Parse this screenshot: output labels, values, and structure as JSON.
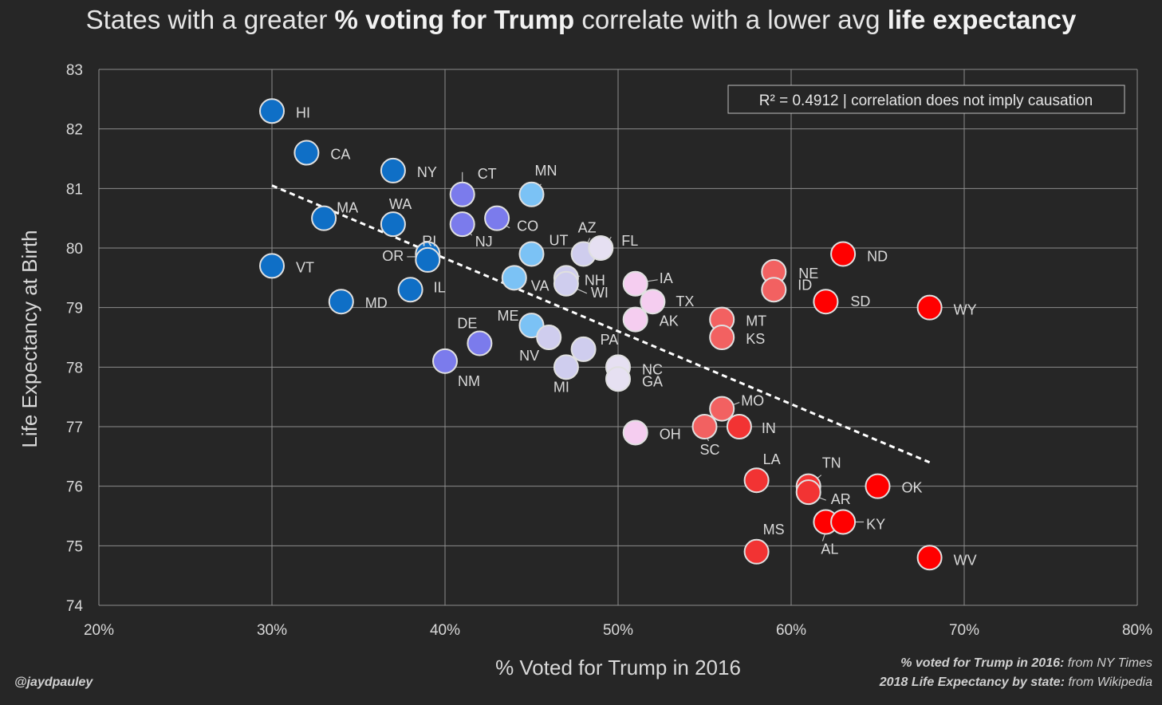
{
  "title": {
    "part1": "States with a greater ",
    "bold1": "% voting for Trump",
    "part2": " correlate with a lower avg ",
    "bold2": "life expectancy"
  },
  "annotation": "R² = 0.4912 | correlation does not imply causation",
  "credit": "@jaydpauley",
  "sources": [
    {
      "bold": "% voted for Trump in 2016:",
      "text": " from NY Times"
    },
    {
      "bold": "2018 Life Expectancy by state:",
      "text": " from Wikipedia"
    }
  ],
  "colors": {
    "background": "#262626",
    "grid": "#8c8c8c",
    "text": "#d9d9d9",
    "trendline": "#ffffff"
  },
  "chart_data": {
    "type": "scatter",
    "xlabel": "% Voted for Trump in 2016",
    "ylabel": "Life Expectancy at Birth",
    "xlim": [
      20,
      80
    ],
    "ylim": [
      74,
      83
    ],
    "x_ticks": [
      20,
      30,
      40,
      50,
      60,
      70,
      80
    ],
    "x_tick_labels": [
      "20%",
      "30%",
      "40%",
      "50%",
      "60%",
      "70%",
      "80%"
    ],
    "y_ticks": [
      74,
      75,
      76,
      77,
      78,
      79,
      80,
      81,
      82,
      83
    ],
    "y_tick_labels": [
      "74",
      "75",
      "76",
      "77",
      "78",
      "79",
      "80",
      "81",
      "82",
      "83"
    ],
    "grid": true,
    "trendline": {
      "style": "dashed",
      "x": [
        30,
        68
      ],
      "y": [
        81.05,
        76.4
      ]
    },
    "points": [
      {
        "label": "HI",
        "x": 30,
        "y": 82.3,
        "color": "#0f6fc6"
      },
      {
        "label": "CA",
        "x": 32,
        "y": 81.6,
        "color": "#0f6fc6"
      },
      {
        "label": "NY",
        "x": 37,
        "y": 81.3,
        "color": "#0f6fc6"
      },
      {
        "label": "MA",
        "x": 33,
        "y": 80.5,
        "color": "#0f6fc6"
      },
      {
        "label": "WA",
        "x": 37,
        "y": 80.4,
        "color": "#0f6fc6"
      },
      {
        "label": "VT",
        "x": 30,
        "y": 79.7,
        "color": "#0f6fc6"
      },
      {
        "label": "MD",
        "x": 34,
        "y": 79.1,
        "color": "#0f6fc6"
      },
      {
        "label": "IL",
        "x": 38,
        "y": 79.3,
        "color": "#0f6fc6"
      },
      {
        "label": "RI",
        "x": 39,
        "y": 79.9,
        "color": "#0f6fc6"
      },
      {
        "label": "OR",
        "x": 39,
        "y": 79.8,
        "color": "#0f6fc6"
      },
      {
        "label": "CT",
        "x": 41,
        "y": 80.9,
        "color": "#7b7bec"
      },
      {
        "label": "NJ",
        "x": 41,
        "y": 80.4,
        "color": "#7b7bec"
      },
      {
        "label": "CO",
        "x": 43,
        "y": 80.5,
        "color": "#7b7bec"
      },
      {
        "label": "DE",
        "x": 42,
        "y": 78.4,
        "color": "#7b7bec"
      },
      {
        "label": "NM",
        "x": 40,
        "y": 78.1,
        "color": "#7b7bec"
      },
      {
        "label": "MN",
        "x": 45,
        "y": 80.9,
        "color": "#7bc2f5"
      },
      {
        "label": "UT",
        "x": 45,
        "y": 79.9,
        "color": "#7bc2f5"
      },
      {
        "label": "VA",
        "x": 44,
        "y": 79.5,
        "color": "#7bc2f5"
      },
      {
        "label": "ME",
        "x": 45,
        "y": 78.7,
        "color": "#7bc2f5"
      },
      {
        "label": "NV",
        "x": 46,
        "y": 78.5,
        "color": "#cfcdee"
      },
      {
        "label": "AZ",
        "x": 48,
        "y": 79.9,
        "color": "#cfcdee"
      },
      {
        "label": "FL",
        "x": 49,
        "y": 80.0,
        "color": "#e6e0f2"
      },
      {
        "label": "NH",
        "x": 47,
        "y": 79.5,
        "color": "#cfcdee"
      },
      {
        "label": "WI",
        "x": 47,
        "y": 79.4,
        "color": "#cfcdee"
      },
      {
        "label": "PA",
        "x": 48,
        "y": 78.3,
        "color": "#cfcdee"
      },
      {
        "label": "MI",
        "x": 47,
        "y": 78.0,
        "color": "#cfcdee"
      },
      {
        "label": "NC",
        "x": 50,
        "y": 78.0,
        "color": "#e6e0f2"
      },
      {
        "label": "GA",
        "x": 50,
        "y": 77.8,
        "color": "#e6e0f2"
      },
      {
        "label": "IA",
        "x": 51,
        "y": 79.4,
        "color": "#f5cdf0"
      },
      {
        "label": "TX",
        "x": 52,
        "y": 79.1,
        "color": "#f5cdf0"
      },
      {
        "label": "AK",
        "x": 51,
        "y": 78.8,
        "color": "#f5cdf0"
      },
      {
        "label": "OH",
        "x": 51,
        "y": 76.9,
        "color": "#f5cdf0"
      },
      {
        "label": "MT",
        "x": 56,
        "y": 78.8,
        "color": "#f26161"
      },
      {
        "label": "KS",
        "x": 56,
        "y": 78.5,
        "color": "#f26161"
      },
      {
        "label": "NE",
        "x": 59,
        "y": 79.6,
        "color": "#f26161"
      },
      {
        "label": "ID",
        "x": 59,
        "y": 79.3,
        "color": "#f26161"
      },
      {
        "label": "MO",
        "x": 56,
        "y": 77.3,
        "color": "#f26161"
      },
      {
        "label": "SC",
        "x": 55,
        "y": 77.0,
        "color": "#f26161"
      },
      {
        "label": "IN",
        "x": 57,
        "y": 77.0,
        "color": "#f23333"
      },
      {
        "label": "LA",
        "x": 58,
        "y": 76.1,
        "color": "#f23333"
      },
      {
        "label": "MS",
        "x": 58,
        "y": 74.9,
        "color": "#f23333"
      },
      {
        "label": "TN",
        "x": 61,
        "y": 76.0,
        "color": "#f23333"
      },
      {
        "label": "AR",
        "x": 61,
        "y": 75.9,
        "color": "#f23333"
      },
      {
        "label": "AL",
        "x": 62,
        "y": 75.4,
        "color": "#ff0000"
      },
      {
        "label": "KY",
        "x": 63,
        "y": 75.4,
        "color": "#ff0000"
      },
      {
        "label": "ND",
        "x": 63,
        "y": 79.9,
        "color": "#ff0000"
      },
      {
        "label": "SD",
        "x": 62,
        "y": 79.1,
        "color": "#ff0000"
      },
      {
        "label": "OK",
        "x": 65,
        "y": 76.0,
        "color": "#ff0000"
      },
      {
        "label": "WY",
        "x": 68,
        "y": 79.0,
        "color": "#ff0000"
      },
      {
        "label": "WV",
        "x": 68,
        "y": 74.8,
        "color": "#ff0000"
      }
    ]
  }
}
